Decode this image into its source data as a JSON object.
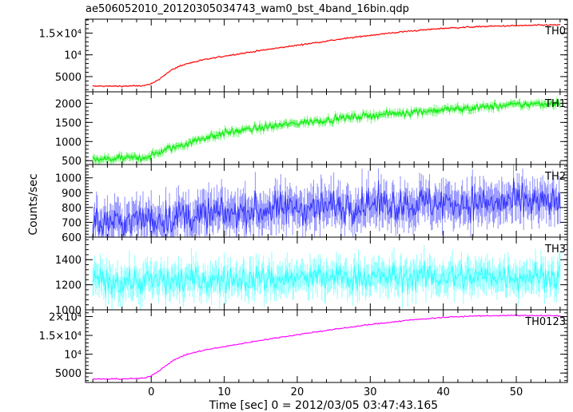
{
  "chart_data": {
    "type": "line",
    "title": "ae506052010_20120305034743_wam0_bst_4band_16bin.qdp",
    "xlabel": "Time [sec] 0 = 2012/03/05 03:47:43.165",
    "ylabel": "Counts/sec",
    "xlim": [
      -9,
      57
    ],
    "x_ticks": [
      0,
      10,
      20,
      30,
      40,
      50
    ],
    "x_tick_labels": [
      "0",
      "10",
      "20",
      "30",
      "40",
      "50"
    ],
    "grid": false,
    "panels": [
      {
        "name": "TH0",
        "color": "#ff0000",
        "ylim": [
          1500,
          18200
        ],
        "y_ticks": [
          5000,
          10000,
          15000
        ],
        "y_tick_labels": [
          "5000",
          "10⁴",
          "1.5×10⁴"
        ],
        "noise": 150,
        "x": [
          -8,
          -4,
          -1,
          0,
          1,
          2,
          3,
          4,
          5,
          7,
          10,
          15,
          20,
          25,
          30,
          35,
          40,
          45,
          50,
          56
        ],
        "y": [
          2800,
          2800,
          2900,
          3300,
          4300,
          5600,
          6700,
          7500,
          8000,
          8800,
          9700,
          11000,
          12200,
          13400,
          14500,
          15400,
          16100,
          16500,
          16700,
          16900
        ]
      },
      {
        "name": "TH1",
        "color": "#00ee00",
        "ylim": [
          400,
          2300
        ],
        "y_ticks": [
          500,
          1000,
          1500,
          2000
        ],
        "y_tick_labels": [
          "500",
          "1000",
          "1500",
          "2000"
        ],
        "noise": 90,
        "x": [
          -8,
          -4,
          -1,
          0,
          2,
          5,
          8,
          10,
          15,
          20,
          25,
          30,
          35,
          40,
          45,
          50,
          56
        ],
        "y": [
          520,
          560,
          580,
          640,
          780,
          960,
          1130,
          1220,
          1360,
          1480,
          1590,
          1680,
          1760,
          1830,
          1890,
          1960,
          2010
        ]
      },
      {
        "name": "TH2",
        "color": "#3333ff",
        "ylim": [
          600,
          1090
        ],
        "y_ticks": [
          600,
          700,
          800,
          900,
          1000
        ],
        "y_tick_labels": [
          "600",
          "700",
          "800",
          "900",
          "1000"
        ],
        "noise": 110,
        "x": [
          -8,
          0,
          10,
          20,
          30,
          40,
          50,
          56
        ],
        "y": [
          690,
          720,
          760,
          800,
          820,
          830,
          830,
          830
        ]
      },
      {
        "name": "TH3",
        "color": "#33ffff",
        "ylim": [
          1000,
          1580
        ],
        "y_ticks": [
          1000,
          1200,
          1400
        ],
        "y_tick_labels": [
          "1000",
          "1200",
          "1400"
        ],
        "noise": 110,
        "x": [
          -8,
          0,
          10,
          20,
          30,
          40,
          50,
          56
        ],
        "y": [
          1230,
          1230,
          1240,
          1250,
          1260,
          1260,
          1270,
          1270
        ]
      },
      {
        "name": "TH0123",
        "color": "#ff00ff",
        "ylim": [
          2500,
          21800
        ],
        "y_ticks": [
          5000,
          10000,
          15000,
          20000
        ],
        "y_tick_labels": [
          "5000",
          "10⁴",
          "1.5×10⁴",
          "2×10⁴"
        ],
        "noise": 150,
        "x": [
          -8,
          -4,
          -1,
          0,
          1,
          2,
          3,
          4,
          5,
          7,
          10,
          15,
          20,
          25,
          30,
          35,
          40,
          45,
          50,
          56
        ],
        "y": [
          3400,
          3450,
          3600,
          4300,
          5500,
          7000,
          8300,
          9300,
          10000,
          11000,
          12000,
          13700,
          15200,
          16600,
          17900,
          19000,
          19800,
          20200,
          20300,
          20200
        ]
      }
    ]
  }
}
